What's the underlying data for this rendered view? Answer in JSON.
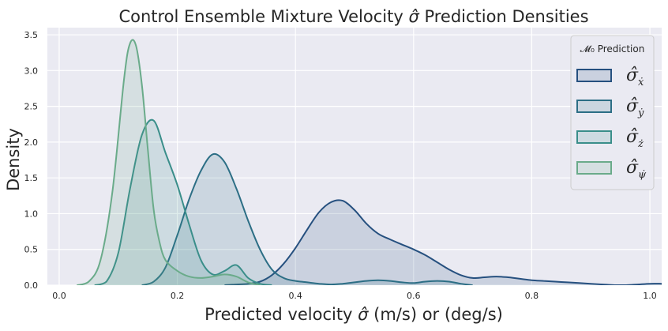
{
  "chart_data": {
    "type": "area",
    "title": "Control Ensemble Mixture Velocity σ̂ Prediction Densities",
    "title_parts": [
      "Control Ensemble Mixture Velocity ",
      "σ̂",
      " Prediction Densities"
    ],
    "xlabel": "Predicted velocity σ̂ (m/s) or (deg/s)",
    "xlabel_parts": [
      "Predicted velocity ",
      "σ̂",
      " (m/s) or (deg/s)"
    ],
    "ylabel": "Density",
    "xlim": [
      -0.02,
      1.02
    ],
    "ylim": [
      0,
      3.6
    ],
    "xticks": [
      0.0,
      0.2,
      0.4,
      0.6,
      0.8,
      1.0
    ],
    "xtick_labels": [
      "0.0",
      "0.2",
      "0.4",
      "0.6",
      "0.8",
      "1.0"
    ],
    "yticks": [
      0.0,
      0.5,
      1.0,
      1.5,
      2.0,
      2.5,
      3.0,
      3.5
    ],
    "ytick_labels": [
      "0.0",
      "0.5",
      "1.0",
      "1.5",
      "2.0",
      "2.5",
      "3.0",
      "3.5"
    ],
    "grid": true,
    "legend": {
      "title": "𝓜₀ Prediction",
      "placement": "top-right"
    },
    "series": [
      {
        "name": "σ̂ẋ",
        "label": "σ̂",
        "subscript": "ẋ",
        "color": "#26507f",
        "x": [
          0.28,
          0.3,
          0.32,
          0.34,
          0.36,
          0.38,
          0.4,
          0.42,
          0.44,
          0.46,
          0.48,
          0.5,
          0.52,
          0.54,
          0.56,
          0.58,
          0.6,
          0.62,
          0.64,
          0.66,
          0.68,
          0.7,
          0.72,
          0.74,
          0.76,
          0.78,
          0.8,
          0.82,
          0.84,
          0.86,
          0.88,
          0.9,
          0.92,
          0.94,
          0.96,
          0.98,
          1.0,
          1.02
        ],
        "y": [
          0.0,
          0.01,
          0.02,
          0.05,
          0.14,
          0.3,
          0.52,
          0.78,
          1.02,
          1.16,
          1.18,
          1.05,
          0.86,
          0.72,
          0.64,
          0.57,
          0.5,
          0.42,
          0.32,
          0.22,
          0.14,
          0.1,
          0.11,
          0.12,
          0.11,
          0.09,
          0.07,
          0.06,
          0.05,
          0.04,
          0.03,
          0.02,
          0.01,
          0.0,
          0.0,
          0.01,
          0.02,
          0.02
        ]
      },
      {
        "name": "σ̂ẏ",
        "label": "σ̂",
        "subscript": "ẏ",
        "color": "#2c6e85",
        "x": [
          0.14,
          0.16,
          0.18,
          0.2,
          0.22,
          0.24,
          0.26,
          0.28,
          0.3,
          0.32,
          0.34,
          0.36,
          0.38,
          0.4,
          0.42,
          0.44,
          0.46,
          0.48,
          0.5,
          0.52,
          0.54,
          0.56,
          0.58,
          0.6,
          0.62,
          0.64,
          0.66,
          0.68,
          0.7
        ],
        "y": [
          0.0,
          0.05,
          0.25,
          0.7,
          1.2,
          1.6,
          1.83,
          1.72,
          1.35,
          0.9,
          0.5,
          0.22,
          0.1,
          0.06,
          0.04,
          0.02,
          0.01,
          0.02,
          0.04,
          0.06,
          0.07,
          0.06,
          0.04,
          0.03,
          0.05,
          0.06,
          0.05,
          0.02,
          0.0
        ]
      },
      {
        "name": "σ̂ż",
        "label": "σ̂",
        "subscript": "ż",
        "color": "#3a8e8a",
        "x": [
          0.06,
          0.08,
          0.1,
          0.12,
          0.14,
          0.16,
          0.18,
          0.2,
          0.22,
          0.24,
          0.26,
          0.28,
          0.3,
          0.32,
          0.34,
          0.36
        ],
        "y": [
          0.0,
          0.05,
          0.45,
          1.35,
          2.1,
          2.3,
          1.85,
          1.4,
          0.85,
          0.35,
          0.15,
          0.2,
          0.28,
          0.1,
          0.02,
          0.0
        ]
      },
      {
        "name": "σ̂ψ̇",
        "label": "σ̂",
        "subscript": "ψ̇",
        "color": "#6aab8a",
        "x": [
          0.03,
          0.05,
          0.07,
          0.09,
          0.11,
          0.12,
          0.13,
          0.14,
          0.15,
          0.16,
          0.17,
          0.18,
          0.2,
          0.22,
          0.24,
          0.26,
          0.28,
          0.3,
          0.32,
          0.34
        ],
        "y": [
          0.0,
          0.05,
          0.35,
          1.3,
          2.9,
          3.38,
          3.35,
          2.8,
          1.9,
          1.05,
          0.6,
          0.35,
          0.2,
          0.12,
          0.1,
          0.12,
          0.15,
          0.12,
          0.04,
          0.0
        ]
      }
    ]
  }
}
